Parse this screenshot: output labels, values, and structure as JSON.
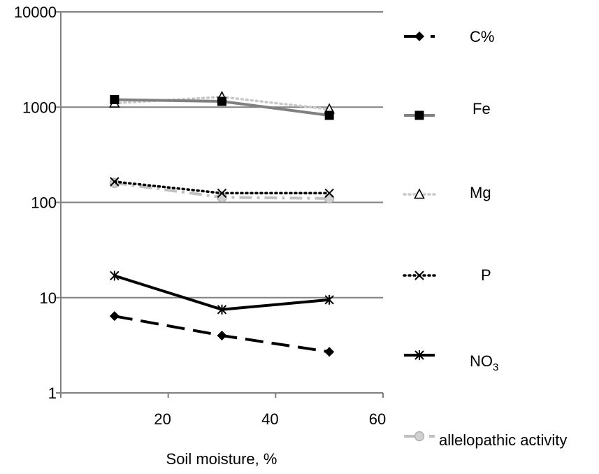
{
  "chart_data": {
    "type": "line",
    "title": "",
    "xlabel": "Soil moisture, %",
    "ylabel": "",
    "x": [
      10,
      30,
      50
    ],
    "xlim": [
      0,
      60
    ],
    "x_ticks": [
      20,
      40,
      60
    ],
    "ylim": [
      1,
      10000
    ],
    "y_scale": "log",
    "y_ticks": [
      1,
      10,
      100,
      1000,
      10000
    ],
    "grid": "horizontal major gridlines",
    "legend_position": "right",
    "series": [
      {
        "name": "C%",
        "values": [
          6.4,
          4.0,
          2.7
        ],
        "color": "#000000",
        "line_style": "long-dash",
        "marker": "diamond"
      },
      {
        "name": "Fe",
        "values": [
          1200,
          1150,
          820
        ],
        "color": "#808080",
        "line_style": "solid",
        "marker": "square"
      },
      {
        "name": "Mg",
        "values": [
          1100,
          1280,
          950
        ],
        "color": "#c8c8c8",
        "line_style": "dotted",
        "marker": "triangle"
      },
      {
        "name": "P",
        "values": [
          165,
          125,
          125
        ],
        "color": "#000000",
        "line_style": "dotted",
        "marker": "x"
      },
      {
        "name": "NO3",
        "legend_main": "NO",
        "legend_sub": "3",
        "values": [
          17,
          7.5,
          9.5
        ],
        "color": "#000000",
        "line_style": "solid",
        "marker": "asterisk"
      },
      {
        "name": "allelopathic activity",
        "values": [
          160,
          113,
          110
        ],
        "color": "#c0c0c0",
        "line_style": "dash-dot",
        "marker": "circle"
      }
    ]
  }
}
